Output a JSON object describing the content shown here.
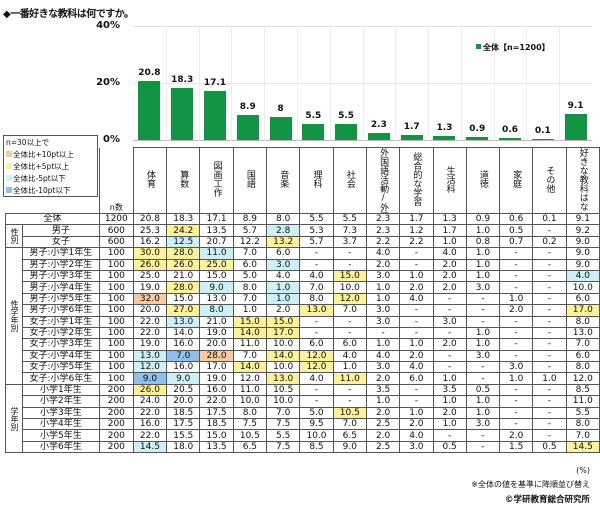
{
  "title": "◆一番好きな教科は何ですか。",
  "colors": {
    "bar": "#119544",
    "plus10": "#f8c9a0",
    "plus5": "#fbf29b",
    "minus5": "#ccf0f6",
    "minus10": "#8fc0ec"
  },
  "legend": {
    "series_label": "全体【n=1200】"
  },
  "key": {
    "title": "n=30以上で",
    "items": [
      {
        "label": "全体比+10pt以上",
        "cls": "c-o"
      },
      {
        "label": "全体比+5pt以上",
        "cls": "c-y"
      },
      {
        "label": "全体比-5pt以下",
        "cls": "c-lb"
      },
      {
        "label": "全体比-10pt以下",
        "cls": "c-b"
      }
    ]
  },
  "n_label": "n数",
  "footer": {
    "unit": "(%)",
    "note": "※全体の値を基準に降順並び替え",
    "copyright": "©学研教育総合研究所"
  },
  "chart_data": {
    "type": "bar",
    "title": "一番好きな教科は何ですか。",
    "categories": [
      "体育",
      "算数",
      "図画工作",
      "国語",
      "音楽",
      "理科",
      "社会",
      "外国語活動/外国語",
      "総合的な学習",
      "生活科",
      "道徳",
      "家庭",
      "その他",
      "好きな教科はない"
    ],
    "series": [
      {
        "name": "全体【n=1200】",
        "values": [
          20.8,
          18.3,
          17.1,
          8.9,
          8.0,
          5.5,
          5.5,
          2.3,
          1.7,
          1.3,
          0.9,
          0.6,
          0.1,
          9.1
        ]
      }
    ],
    "yticks": [
      "0%",
      "20%",
      "40%"
    ],
    "ylim": [
      0,
      40
    ],
    "xlabel": "",
    "ylabel": "",
    "legend_position": "top-right",
    "grid": true
  },
  "columns": [
    "体育",
    "算数",
    "図画工作",
    "国語",
    "音楽",
    "理科",
    "社会",
    "外国語活動/外国語",
    "総合的な学習",
    "生活科",
    "道徳",
    "家庭",
    "その他",
    "好きな教科はない"
  ],
  "groups": [
    {
      "label": "",
      "rows": [
        {
          "label": "全体",
          "n": "1200",
          "v": [
            "20.8",
            "18.3",
            "17.1",
            "8.9",
            "8.0",
            "5.5",
            "5.5",
            "2.3",
            "1.7",
            "1.3",
            "0.9",
            "0.6",
            "0.1",
            "9.1"
          ],
          "h": [
            "",
            "",
            "",
            "",
            "",
            "",
            "",
            "",
            "",
            "",
            "",
            "",
            "",
            ""
          ]
        }
      ]
    },
    {
      "label": "性別",
      "rows": [
        {
          "label": "男子",
          "n": "600",
          "v": [
            "25.3",
            "24.2",
            "13.5",
            "5.7",
            "2.8",
            "5.3",
            "7.3",
            "2.3",
            "1.2",
            "1.7",
            "1.0",
            "0.5",
            "-",
            "9.2"
          ],
          "h": [
            "",
            "c-y",
            "",
            "",
            "c-lb",
            "",
            "",
            "",
            "",
            "",
            "",
            "",
            "",
            ""
          ]
        },
        {
          "label": "女子",
          "n": "600",
          "v": [
            "16.2",
            "12.5",
            "20.7",
            "12.2",
            "13.2",
            "5.7",
            "3.7",
            "2.2",
            "2.2",
            "1.0",
            "0.8",
            "0.7",
            "0.2",
            "9.0"
          ],
          "h": [
            "",
            "c-lb",
            "",
            "",
            "c-y",
            "",
            "",
            "",
            "",
            "",
            "",
            "",
            "",
            ""
          ]
        }
      ]
    },
    {
      "label": "性学年別",
      "rows": [
        {
          "label": "男子:小学1年生",
          "n": "100",
          "v": [
            "30.0",
            "28.0",
            "11.0",
            "7.0",
            "6.0",
            "-",
            "-",
            "4.0",
            "-",
            "4.0",
            "1.0",
            "-",
            "-",
            "9.0"
          ],
          "h": [
            "c-y",
            "c-y",
            "c-lb",
            "",
            "",
            "",
            "",
            "",
            "",
            "",
            "",
            "",
            "",
            ""
          ]
        },
        {
          "label": "男子:小学2年生",
          "n": "100",
          "v": [
            "26.0",
            "26.0",
            "25.0",
            "6.0",
            "3.0",
            "-",
            "-",
            "2.0",
            "-",
            "2.0",
            "1.0",
            "-",
            "-",
            "9.0"
          ],
          "h": [
            "c-y",
            "c-y",
            "c-y",
            "",
            "c-lb",
            "",
            "",
            "",
            "",
            "",
            "",
            "",
            "",
            ""
          ]
        },
        {
          "label": "男子:小学3年生",
          "n": "100",
          "v": [
            "25.0",
            "21.0",
            "15.0",
            "5.0",
            "4.0",
            "4.0",
            "15.0",
            "3.0",
            "1.0",
            "2.0",
            "1.0",
            "-",
            "-",
            "4.0"
          ],
          "h": [
            "",
            "",
            "",
            "",
            "",
            "",
            "c-y",
            "",
            "",
            "",
            "",
            "",
            "",
            "c-lb"
          ]
        },
        {
          "label": "男子:小学4年生",
          "n": "100",
          "v": [
            "19.0",
            "28.0",
            "9.0",
            "8.0",
            "1.0",
            "7.0",
            "10.0",
            "1.0",
            "2.0",
            "2.0",
            "3.0",
            "-",
            "-",
            "10.0"
          ],
          "h": [
            "",
            "c-y",
            "c-lb",
            "",
            "c-lb",
            "",
            "",
            "",
            "",
            "",
            "",
            "",
            "",
            ""
          ]
        },
        {
          "label": "男子:小学5年生",
          "n": "100",
          "v": [
            "32.0",
            "15.0",
            "13.0",
            "7.0",
            "1.0",
            "8.0",
            "12.0",
            "1.0",
            "4.0",
            "-",
            "-",
            "1.0",
            "-",
            "6.0"
          ],
          "h": [
            "c-o",
            "",
            "",
            "",
            "c-lb",
            "",
            "c-y",
            "",
            "",
            "",
            "",
            "",
            "",
            ""
          ]
        },
        {
          "label": "男子:小学6年生",
          "n": "100",
          "v": [
            "20.0",
            "27.0",
            "8.0",
            "1.0",
            "2.0",
            "13.0",
            "7.0",
            "3.0",
            "-",
            "-",
            "-",
            "2.0",
            "-",
            "17.0"
          ],
          "h": [
            "",
            "c-y",
            "c-lb",
            "",
            "",
            "c-y",
            "",
            "",
            "",
            "",
            "",
            "",
            "",
            "c-y"
          ]
        },
        {
          "label": "女子:小学1年生",
          "n": "100",
          "v": [
            "22.0",
            "13.0",
            "21.0",
            "15.0",
            "15.0",
            "-",
            "-",
            "3.0",
            "-",
            "3.0",
            "-",
            "-",
            "-",
            "8.0"
          ],
          "h": [
            "",
            "c-lb",
            "",
            "c-y",
            "c-y",
            "",
            "",
            "",
            "",
            "",
            "",
            "",
            "",
            ""
          ]
        },
        {
          "label": "女子:小学2年生",
          "n": "100",
          "v": [
            "22.0",
            "14.0",
            "19.0",
            "14.0",
            "17.0",
            "-",
            "-",
            "-",
            "-",
            "-",
            "1.0",
            "-",
            "-",
            "13.0"
          ],
          "h": [
            "",
            "",
            "",
            "c-y",
            "c-y",
            "",
            "",
            "",
            "",
            "",
            "",
            "",
            "",
            ""
          ]
        },
        {
          "label": "女子:小学3年生",
          "n": "100",
          "v": [
            "19.0",
            "16.0",
            "20.0",
            "11.0",
            "10.0",
            "6.0",
            "6.0",
            "1.0",
            "1.0",
            "2.0",
            "1.0",
            "-",
            "-",
            "7.0"
          ],
          "h": [
            "",
            "",
            "",
            "",
            "",
            "",
            "",
            "",
            "",
            "",
            "",
            "",
            "",
            ""
          ]
        },
        {
          "label": "女子:小学4年生",
          "n": "100",
          "v": [
            "13.0",
            "7.0",
            "28.0",
            "7.0",
            "14.0",
            "12.0",
            "4.0",
            "4.0",
            "2.0",
            "-",
            "3.0",
            "-",
            "-",
            "6.0"
          ],
          "h": [
            "c-lb",
            "c-b",
            "c-o",
            "",
            "c-y",
            "c-y",
            "",
            "",
            "",
            "",
            "",
            "",
            "",
            ""
          ]
        },
        {
          "label": "女子:小学5年生",
          "n": "100",
          "v": [
            "12.0",
            "16.0",
            "17.0",
            "14.0",
            "10.0",
            "12.0",
            "1.0",
            "3.0",
            "4.0",
            "-",
            "-",
            "3.0",
            "-",
            "8.0"
          ],
          "h": [
            "c-lb",
            "",
            "",
            "c-y",
            "",
            "c-y",
            "",
            "",
            "",
            "",
            "",
            "",
            "",
            ""
          ]
        },
        {
          "label": "女子:小学6年生",
          "n": "100",
          "v": [
            "9.0",
            "9.0",
            "19.0",
            "12.0",
            "13.0",
            "4.0",
            "11.0",
            "2.0",
            "6.0",
            "1.0",
            "-",
            "1.0",
            "1.0",
            "12.0"
          ],
          "h": [
            "c-b",
            "c-lb",
            "",
            "",
            "c-y",
            "",
            "c-y",
            "",
            "",
            "",
            "",
            "",
            "",
            ""
          ]
        }
      ]
    },
    {
      "label": "学年別",
      "rows": [
        {
          "label": "小学1年生",
          "n": "200",
          "v": [
            "26.0",
            "20.5",
            "16.0",
            "11.0",
            "10.5",
            "-",
            "-",
            "3.5",
            "-",
            "3.5",
            "0.5",
            "-",
            "-",
            "8.5"
          ],
          "h": [
            "c-y",
            "",
            "",
            "",
            "",
            "",
            "",
            "",
            "",
            "",
            "",
            "",
            "",
            ""
          ]
        },
        {
          "label": "小学2年生",
          "n": "200",
          "v": [
            "24.0",
            "20.0",
            "22.0",
            "10.0",
            "10.0",
            "-",
            "-",
            "1.0",
            "-",
            "1.0",
            "1.0",
            "-",
            "-",
            "11.0"
          ],
          "h": [
            "",
            "",
            "",
            "",
            "",
            "",
            "",
            "",
            "",
            "",
            "",
            "",
            "",
            ""
          ]
        },
        {
          "label": "小学3年生",
          "n": "200",
          "v": [
            "22.0",
            "18.5",
            "17.5",
            "8.0",
            "7.0",
            "5.0",
            "10.5",
            "2.0",
            "1.0",
            "2.0",
            "1.0",
            "-",
            "-",
            "5.5"
          ],
          "h": [
            "",
            "",
            "",
            "",
            "",
            "",
            "c-y",
            "",
            "",
            "",
            "",
            "",
            "",
            ""
          ]
        },
        {
          "label": "小学4年生",
          "n": "200",
          "v": [
            "16.0",
            "17.5",
            "18.5",
            "7.5",
            "7.5",
            "9.5",
            "7.0",
            "2.5",
            "2.0",
            "1.0",
            "3.0",
            "-",
            "-",
            "8.0"
          ],
          "h": [
            "",
            "",
            "",
            "",
            "",
            "",
            "",
            "",
            "",
            "",
            "",
            "",
            "",
            ""
          ]
        },
        {
          "label": "小学5年生",
          "n": "200",
          "v": [
            "22.0",
            "15.5",
            "15.0",
            "10.5",
            "5.5",
            "10.0",
            "6.5",
            "2.0",
            "4.0",
            "-",
            "-",
            "2.0",
            "-",
            "7.0"
          ],
          "h": [
            "",
            "",
            "",
            "",
            "",
            "",
            "",
            "",
            "",
            "",
            "",
            "",
            "",
            ""
          ]
        },
        {
          "label": "小学6年生",
          "n": "200",
          "v": [
            "14.5",
            "18.0",
            "13.5",
            "6.5",
            "7.5",
            "8.5",
            "9.0",
            "2.5",
            "3.0",
            "0.5",
            "-",
            "1.5",
            "0.5",
            "14.5"
          ],
          "h": [
            "c-lb",
            "",
            "",
            "",
            "",
            "",
            "",
            "",
            "",
            "",
            "",
            "",
            "",
            "c-y"
          ]
        }
      ]
    }
  ]
}
